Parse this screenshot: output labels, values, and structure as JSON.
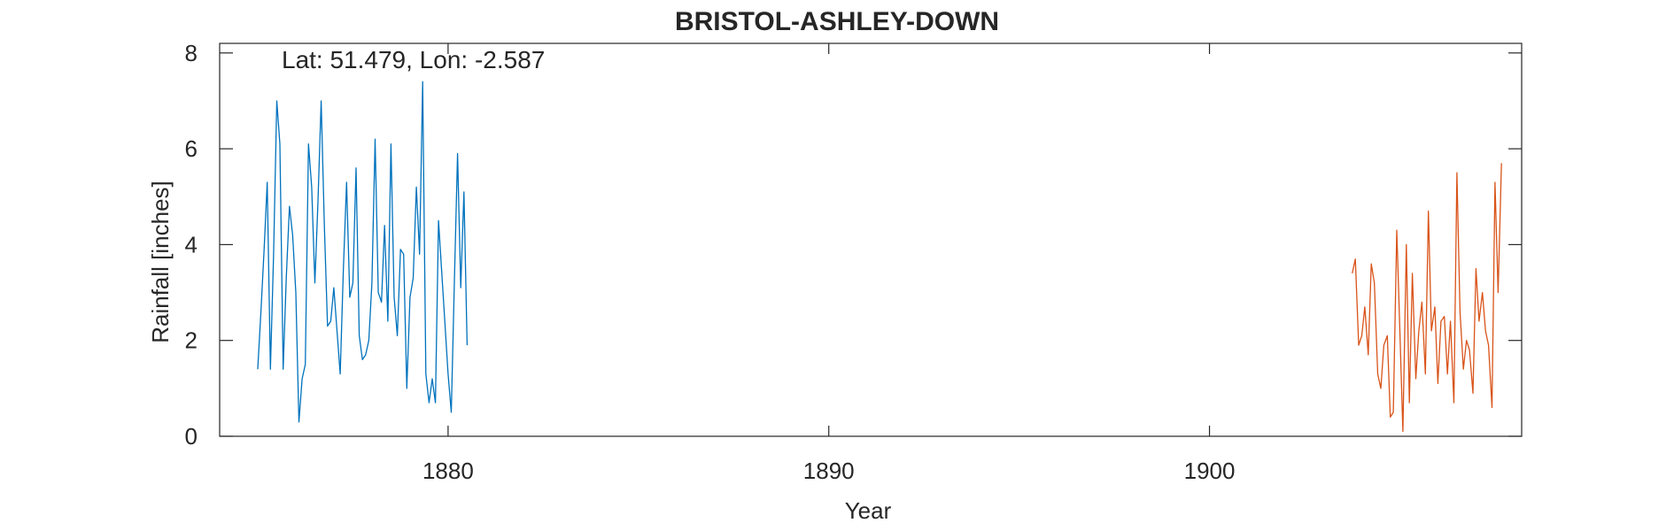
{
  "chart_data": {
    "type": "line",
    "title": "BRISTOL-ASHLEY-DOWN",
    "xlabel": "Year",
    "ylabel": "Rainfall [inches]",
    "xlim": [
      1874,
      1908.2
    ],
    "ylim": [
      0,
      8.2
    ],
    "xticks": [
      1880,
      1890,
      1900
    ],
    "yticks": [
      0,
      2,
      4,
      6,
      8
    ],
    "grid": false,
    "annotation": "Lat: 51.479, Lon: -2.587",
    "series": [
      {
        "color": "#0072BD",
        "x": [
          1875.0,
          1875.083,
          1875.167,
          1875.25,
          1875.333,
          1875.417,
          1875.5,
          1875.583,
          1875.667,
          1875.75,
          1875.833,
          1875.917,
          1876.0,
          1876.083,
          1876.167,
          1876.25,
          1876.333,
          1876.417,
          1876.5,
          1876.583,
          1876.667,
          1876.75,
          1876.833,
          1876.917,
          1877.0,
          1877.083,
          1877.167,
          1877.25,
          1877.333,
          1877.417,
          1877.5,
          1877.583,
          1877.667,
          1877.75,
          1877.833,
          1877.917,
          1878.0,
          1878.083,
          1878.167,
          1878.25,
          1878.333,
          1878.417,
          1878.5,
          1878.583,
          1878.667,
          1878.75,
          1878.833,
          1878.917,
          1879.0,
          1879.083,
          1879.167,
          1879.25,
          1879.333,
          1879.417,
          1879.5,
          1879.583,
          1879.667,
          1879.75,
          1880.0,
          1880.083,
          1880.167,
          1880.25,
          1880.333,
          1880.417,
          1880.5
        ],
        "y": [
          1.4,
          2.6,
          3.9,
          5.3,
          1.4,
          3.8,
          7.0,
          6.1,
          1.4,
          3.3,
          4.8,
          4.2,
          3.0,
          0.3,
          1.2,
          1.5,
          6.1,
          5.2,
          3.2,
          4.9,
          7.0,
          4.4,
          2.3,
          2.4,
          3.1,
          2.2,
          1.3,
          3.5,
          5.3,
          2.9,
          3.2,
          5.6,
          2.1,
          1.6,
          1.7,
          2.0,
          3.2,
          6.2,
          3.0,
          2.8,
          4.4,
          2.4,
          6.1,
          2.9,
          2.1,
          3.9,
          3.8,
          1.0,
          2.9,
          3.3,
          5.2,
          3.8,
          7.4,
          1.3,
          0.7,
          1.2,
          0.7,
          4.5,
          1.3,
          0.5,
          3.3,
          5.9,
          3.1,
          5.1,
          1.9
        ]
      },
      {
        "color": "#D95319",
        "x": [
          1903.75,
          1903.83,
          1903.92,
          1904.0,
          1904.08,
          1904.17,
          1904.25,
          1904.33,
          1904.42,
          1904.5,
          1904.58,
          1904.67,
          1904.75,
          1904.83,
          1904.92,
          1905.0,
          1905.08,
          1905.17,
          1905.25,
          1905.33,
          1905.42,
          1905.5,
          1905.58,
          1905.67,
          1905.75,
          1905.83,
          1905.92,
          1906.0,
          1906.08,
          1906.17,
          1906.25,
          1906.33,
          1906.42,
          1906.5,
          1906.58,
          1906.67,
          1906.75,
          1906.83,
          1906.92,
          1907.0,
          1907.08,
          1907.17,
          1907.25,
          1907.33,
          1907.42,
          1907.5,
          1907.58,
          1907.67
        ],
        "y": [
          3.4,
          3.7,
          1.9,
          2.1,
          2.7,
          1.7,
          3.6,
          3.2,
          1.3,
          1.0,
          1.9,
          2.1,
          0.4,
          0.5,
          4.3,
          2.2,
          0.1,
          4.0,
          0.7,
          3.4,
          1.2,
          2.2,
          2.8,
          1.3,
          4.7,
          2.2,
          2.7,
          1.1,
          2.4,
          2.5,
          1.3,
          2.4,
          0.7,
          5.5,
          2.6,
          1.4,
          2.0,
          1.8,
          0.9,
          3.5,
          2.4,
          3.0,
          2.2,
          1.9,
          0.6,
          5.3,
          3.0,
          5.7
        ]
      }
    ]
  }
}
